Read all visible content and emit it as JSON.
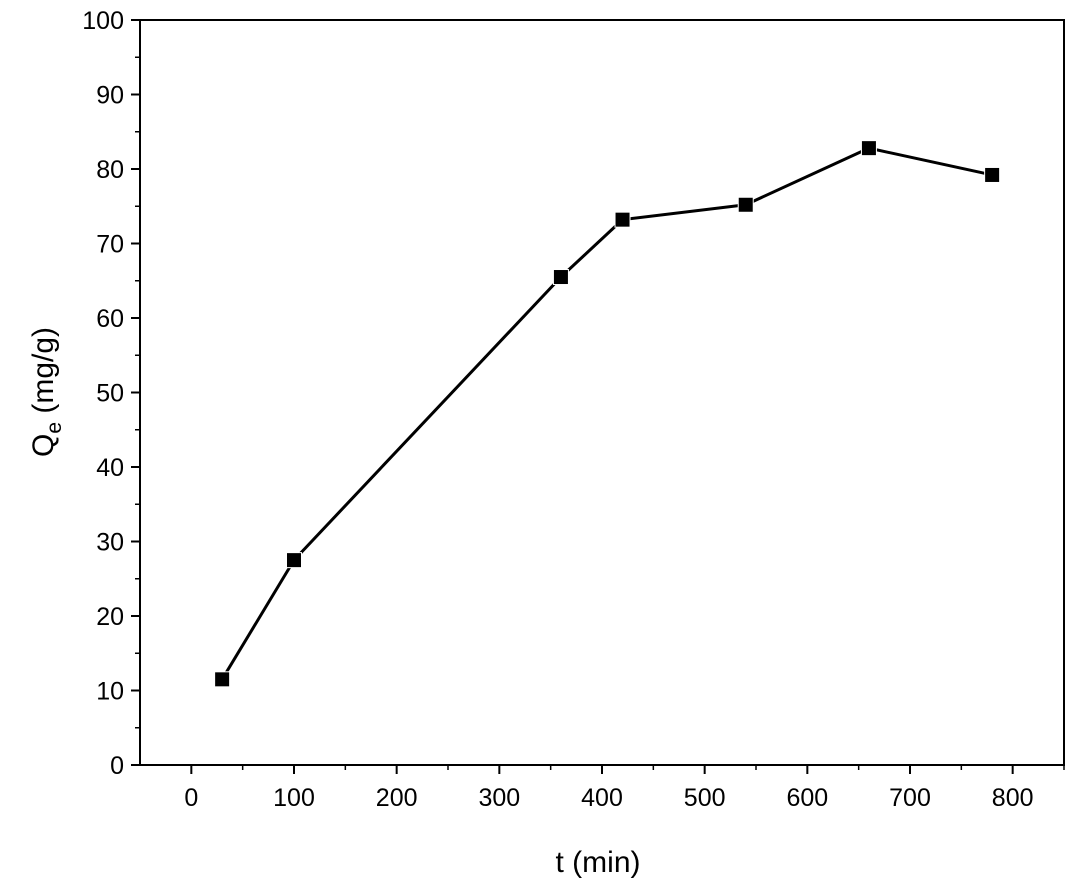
{
  "chart_data": {
    "type": "line",
    "title": "",
    "xlabel": "t (min)",
    "ylabel_main": "Q",
    "ylabel_sub": "e",
    "ylabel_rest": " (mg/g)",
    "xlim": [
      -50,
      850
    ],
    "ylim": [
      0,
      100
    ],
    "xticks": [
      0,
      100,
      200,
      300,
      400,
      500,
      600,
      700,
      800
    ],
    "yticks": [
      0,
      10,
      20,
      30,
      40,
      50,
      60,
      70,
      80,
      90,
      100
    ],
    "grid": false,
    "legend": "none",
    "marker": "square",
    "color": "#000000",
    "series": [
      {
        "x": [
          30,
          100,
          360,
          420,
          540,
          660,
          780
        ],
        "y": [
          11.5,
          27.5,
          65.5,
          73.2,
          75.2,
          82.8,
          79.2
        ]
      }
    ]
  }
}
